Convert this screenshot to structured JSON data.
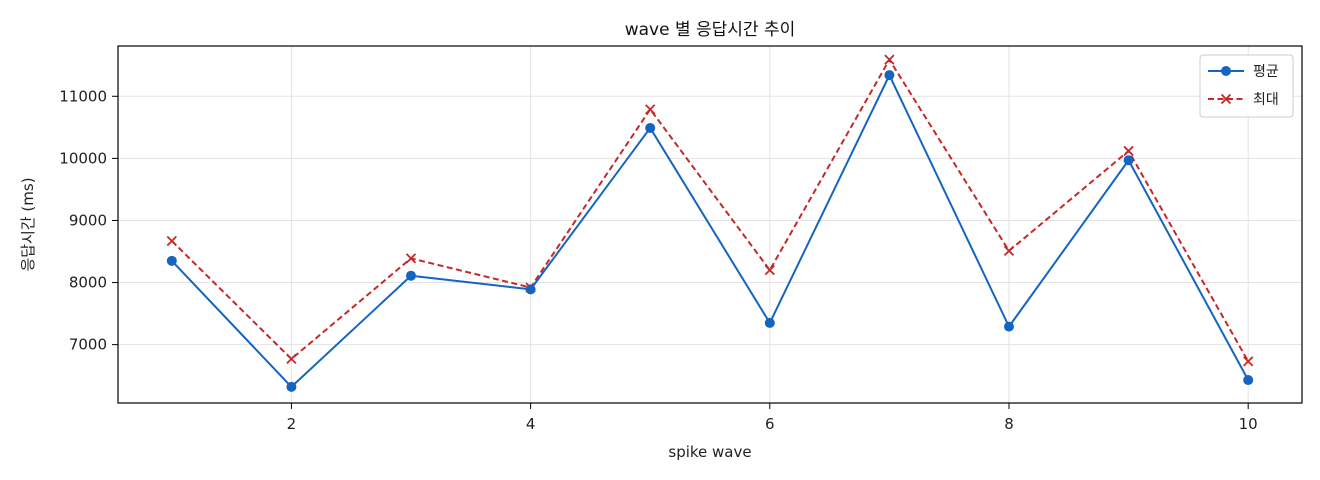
{
  "chart_data": {
    "type": "line",
    "title": "wave 별 응답시간 추이",
    "xlabel": "spike wave",
    "ylabel": "응답시간 (ms)",
    "x": [
      1,
      2,
      3,
      4,
      5,
      6,
      7,
      8,
      9,
      10
    ],
    "xlim": [
      0.55,
      10.45
    ],
    "ylim": [
      6060,
      11810
    ],
    "xticks": [
      2,
      4,
      6,
      8,
      10
    ],
    "yticks": [
      7000,
      8000,
      9000,
      10000,
      11000
    ],
    "grid": true,
    "legend_position": "top-right",
    "series": [
      {
        "name": "평균",
        "color": "#1565c0",
        "line_style": "solid",
        "marker": "circle",
        "values": [
          8350,
          6320,
          8110,
          7890,
          10490,
          7350,
          11340,
          7290,
          9970,
          6430
        ]
      },
      {
        "name": "최대",
        "color": "#c62828",
        "line_style": "dashed",
        "marker": "x",
        "values": [
          8670,
          6770,
          8390,
          7920,
          10790,
          8200,
          11590,
          8510,
          10120,
          6730
        ]
      }
    ]
  }
}
